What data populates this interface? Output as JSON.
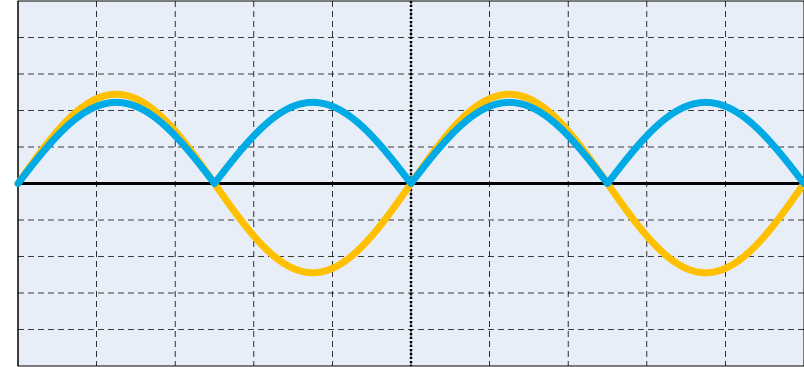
{
  "chart_data": {
    "type": "line",
    "title": "",
    "xlabel": "",
    "ylabel": "",
    "xlim": [
      0,
      10
    ],
    "ylim": [
      -4.5,
      4.5
    ],
    "grid": true,
    "legend": "none",
    "background_color": "#e8eef8",
    "series": [
      {
        "color": "#ffc000",
        "style": "sine",
        "amplitude": 2.2,
        "period": 5.0,
        "phase": 0.0
      },
      {
        "color": "#00aae4",
        "style": "rectified-sine",
        "amplitude": 2.0,
        "period": 5.0,
        "phase": 0.0
      }
    ]
  }
}
